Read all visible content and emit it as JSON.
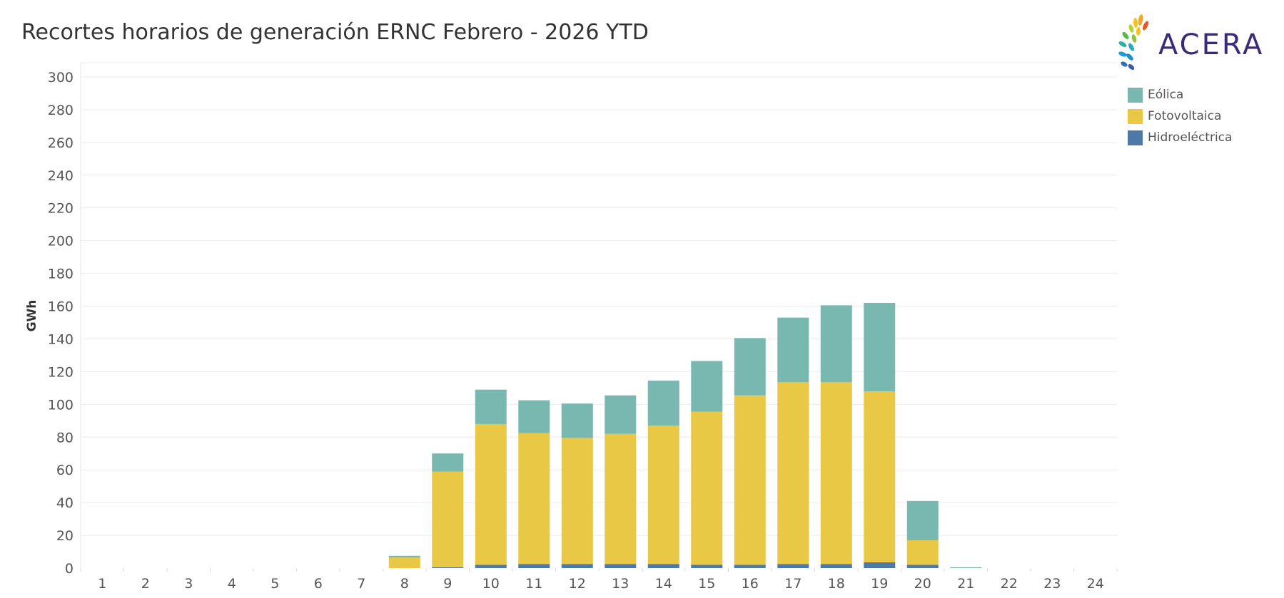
{
  "header": {
    "title": "Recortes horarios de generación ERNC Febrero - 2026 YTD",
    "logo_text": "ACERA"
  },
  "legend": [
    {
      "label": "Eólica",
      "color": "#79b8b0"
    },
    {
      "label": "Fotovoltaica",
      "color": "#e9c846"
    },
    {
      "label": "Hidroeléctrica",
      "color": "#4e79a7"
    }
  ],
  "chart_data": {
    "type": "bar",
    "stacked": true,
    "ylabel": "GWh",
    "xlabel": "",
    "ylim": [
      0,
      300
    ],
    "yticks": [
      0,
      20,
      40,
      60,
      80,
      100,
      120,
      140,
      160,
      180,
      200,
      220,
      240,
      260,
      280,
      300
    ],
    "grid": true,
    "legend_position": "top-right",
    "categories": [
      "1",
      "2",
      "3",
      "4",
      "5",
      "6",
      "7",
      "8",
      "9",
      "10",
      "11",
      "12",
      "13",
      "14",
      "15",
      "16",
      "17",
      "18",
      "19",
      "20",
      "21",
      "22",
      "23",
      "24"
    ],
    "series": [
      {
        "name": "Hidroeléctrica",
        "color": "#4e79a7",
        "values": [
          0,
          0,
          0,
          0,
          0,
          0,
          0,
          0,
          0.5,
          2,
          2.5,
          2.5,
          2.5,
          2.5,
          2,
          2,
          2.5,
          2.5,
          3.5,
          2,
          0,
          0,
          0,
          0
        ]
      },
      {
        "name": "Fotovoltaica",
        "color": "#e9c846",
        "values": [
          0,
          0,
          0,
          0,
          0,
          0,
          0,
          6.5,
          58.5,
          86,
          80,
          77,
          79.5,
          84.5,
          93.5,
          103.5,
          111,
          111,
          104.5,
          15,
          0,
          0,
          0,
          0
        ]
      },
      {
        "name": "Eólica",
        "color": "#79b8b0",
        "values": [
          0,
          0,
          0,
          0,
          0,
          0,
          0,
          1,
          11,
          21,
          20,
          21,
          23.5,
          27.5,
          31,
          35,
          39.5,
          47,
          54,
          24,
          0.5,
          0,
          0,
          0
        ]
      }
    ]
  }
}
